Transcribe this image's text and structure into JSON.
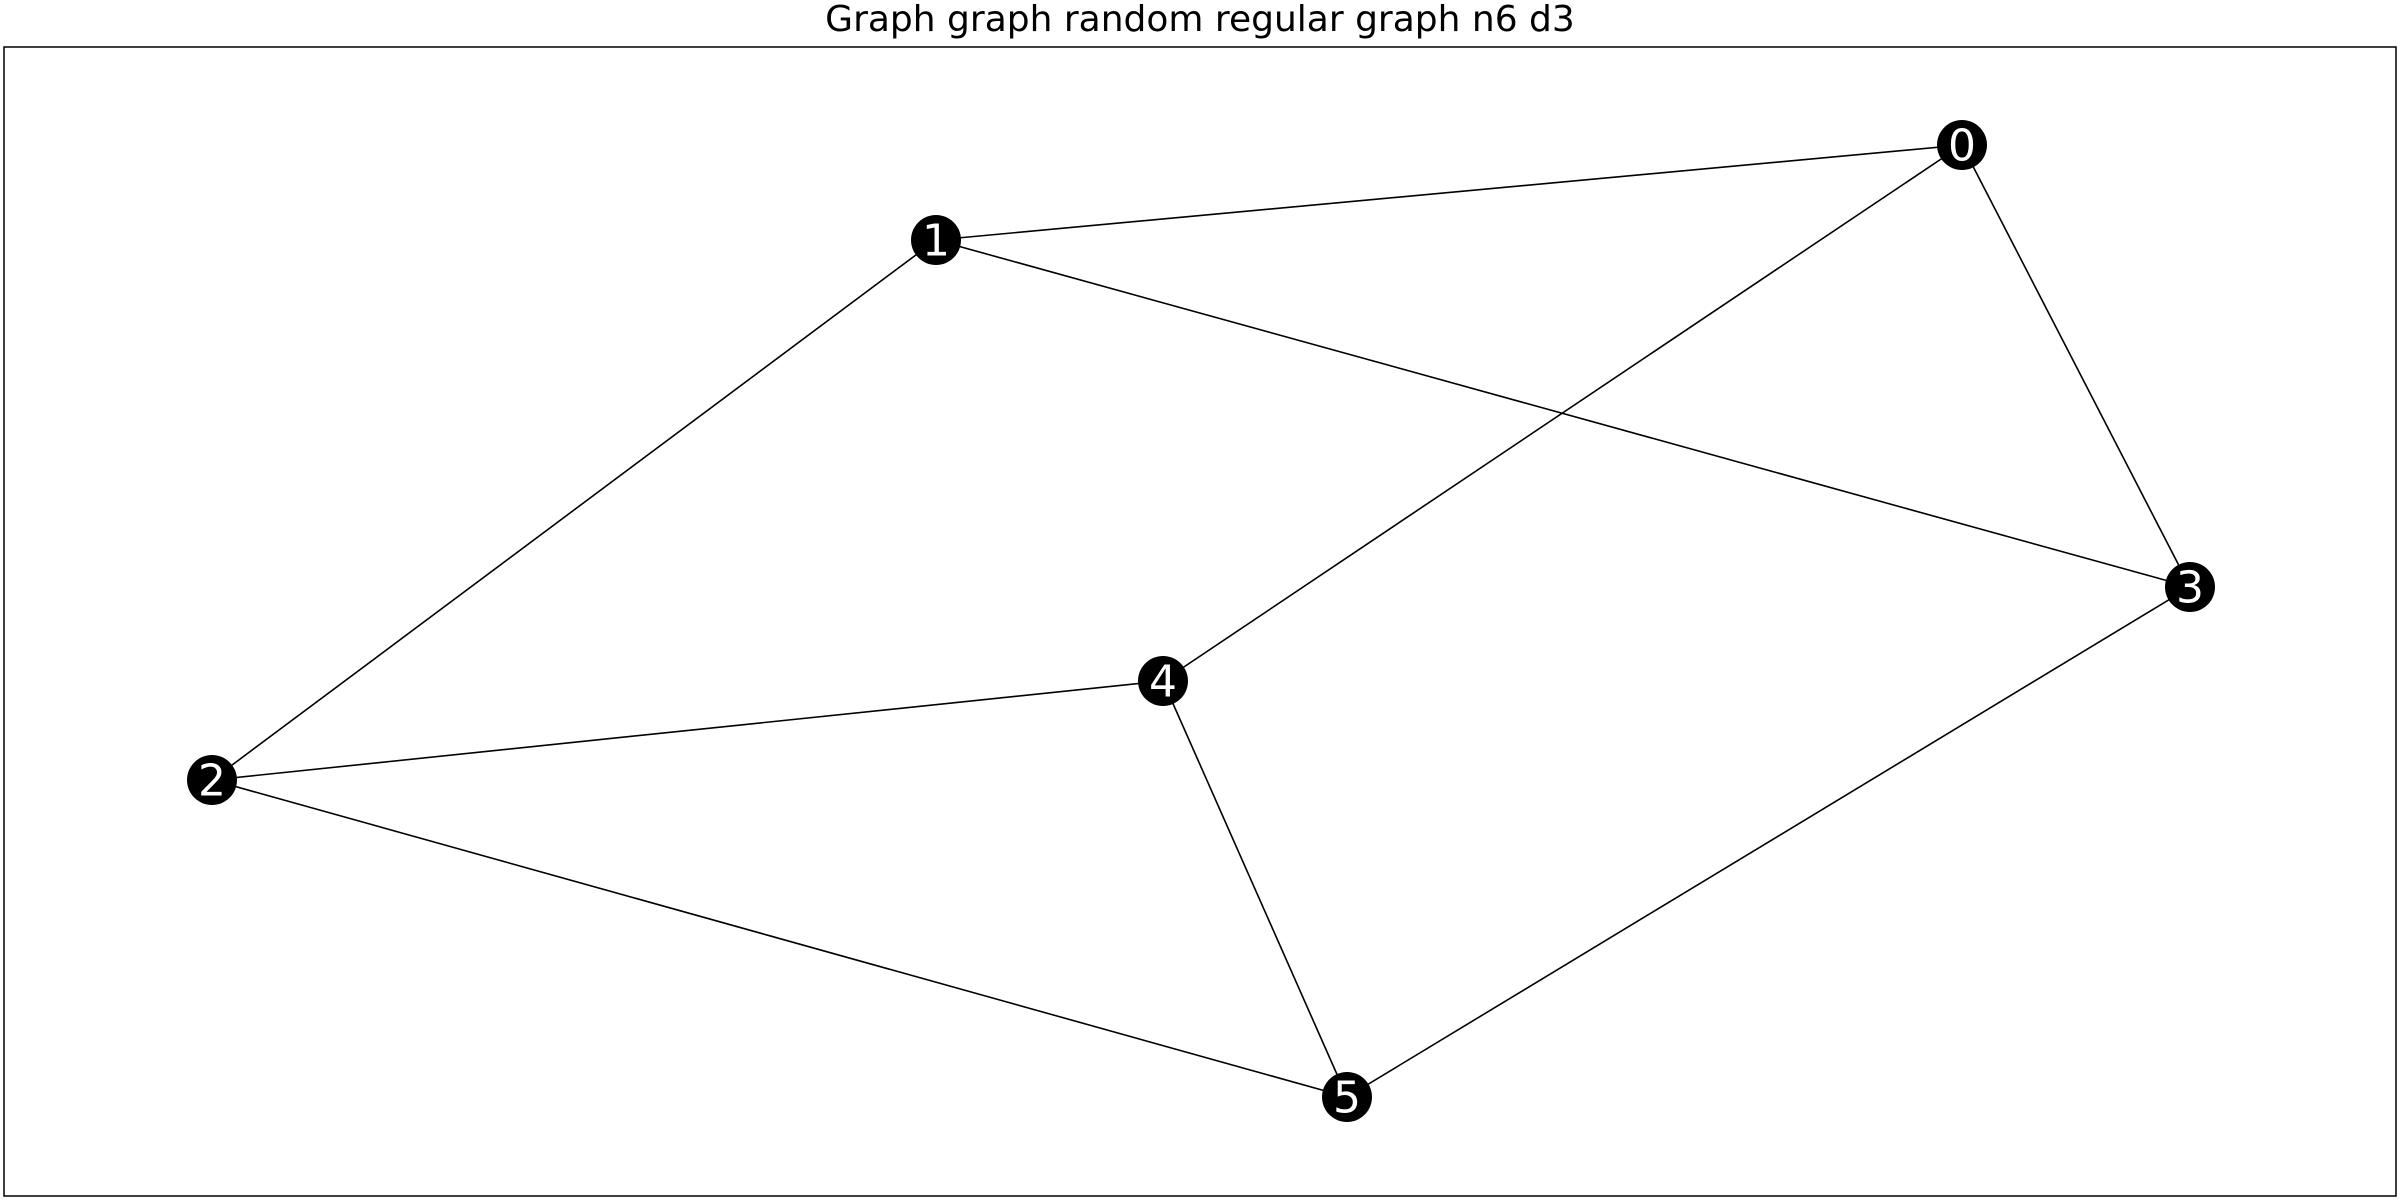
{
  "title": "Graph graph random regular graph n6 d3",
  "colors": {
    "node_fill": "#000000",
    "node_label": "#ffffff",
    "edge": "#000000",
    "frame": "#000000",
    "background": "#ffffff"
  },
  "graph": {
    "nodes": [
      {
        "id": "0",
        "label": "0"
      },
      {
        "id": "1",
        "label": "1"
      },
      {
        "id": "2",
        "label": "2"
      },
      {
        "id": "3",
        "label": "3"
      },
      {
        "id": "4",
        "label": "4"
      },
      {
        "id": "5",
        "label": "5"
      }
    ],
    "edges": [
      {
        "source": "0",
        "target": "1"
      },
      {
        "source": "0",
        "target": "4"
      },
      {
        "source": "0",
        "target": "3"
      },
      {
        "source": "1",
        "target": "2"
      },
      {
        "source": "1",
        "target": "3"
      },
      {
        "source": "2",
        "target": "4"
      },
      {
        "source": "2",
        "target": "5"
      },
      {
        "source": "4",
        "target": "5"
      },
      {
        "source": "3",
        "target": "5"
      }
    ]
  }
}
